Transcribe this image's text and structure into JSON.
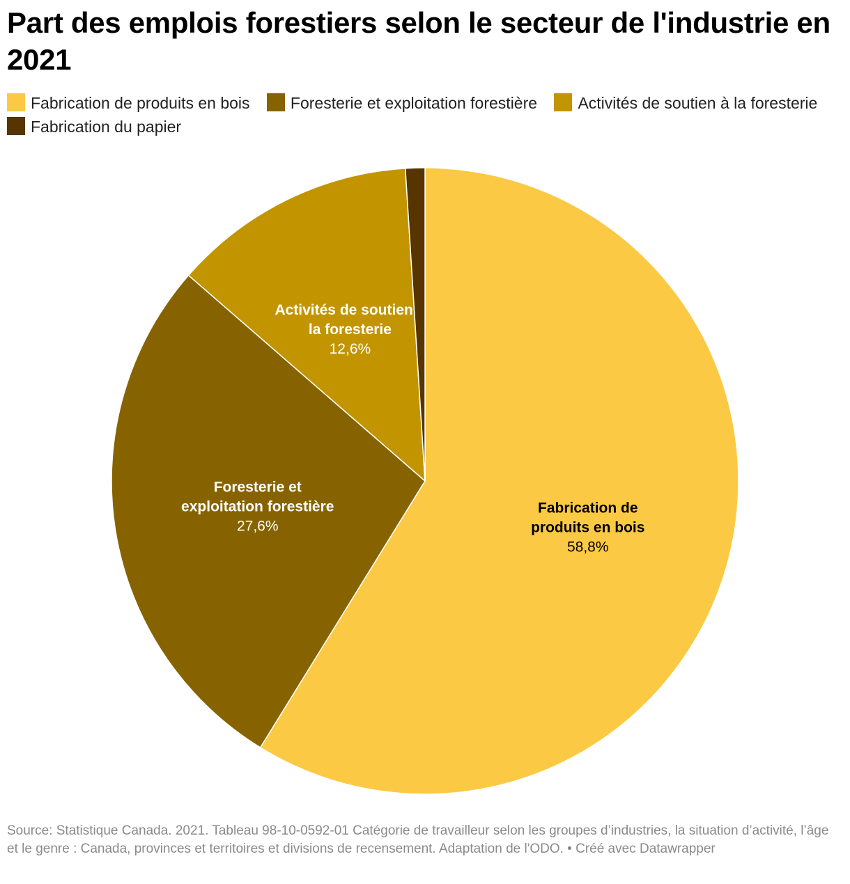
{
  "title": "Part des emplois forestiers selon le secteur de l'industrie en 2021",
  "chart_data": {
    "type": "pie",
    "title": "Part des emplois forestiers selon le secteur de l'industrie en 2021",
    "legend_position": "top",
    "slices": [
      {
        "label": "Fabrication de produits en bois",
        "value": 58.8,
        "display": "58,8%",
        "color": "#fbc943",
        "text_color": "#000000",
        "chart_label_lines": [
          "Fabrication de",
          "produits en bois"
        ]
      },
      {
        "label": "Foresterie et exploitation forestière",
        "value": 27.6,
        "display": "27,6%",
        "color": "#876300",
        "text_color": "#ffffff",
        "chart_label_lines": [
          "Foresterie et",
          "exploitation forestière"
        ]
      },
      {
        "label": "Activités de soutien à la foresterie",
        "value": 12.6,
        "display": "12,6%",
        "color": "#c29500",
        "text_color": "#ffffff",
        "chart_label_lines": [
          "Activités de soutien à",
          "la foresterie"
        ]
      },
      {
        "label": "Fabrication du papier",
        "value": 1.0,
        "display": "",
        "color": "#563500",
        "text_color": "#ffffff",
        "chart_label_lines": []
      }
    ]
  },
  "source": "Source: Statistique Canada. 2021. Tableau 98-10-0592-01 Catégorie de travailleur selon les groupes d’industries, la situation d’activité, l’âge et le genre : Canada, provinces et territoires et divisions de recensement. Adaptation de l'ODO. • Créé avec Datawrapper"
}
